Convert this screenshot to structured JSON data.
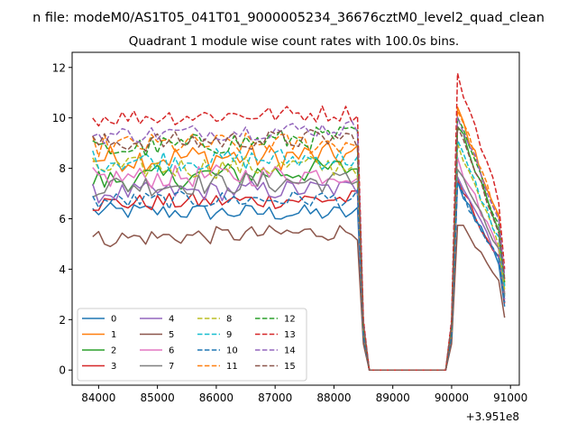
{
  "chart_data": {
    "type": "line",
    "suptitle": "n file: modeM0/AS1T05_041T01_9000005234_36676cztM0_level2_quad_clean",
    "title": "Quadrant 1 module wise count rates with 100.0s bins.",
    "xlabel": "",
    "ylabel": "",
    "x_offset_label": "+3.951e8",
    "xlim": [
      83550,
      91150
    ],
    "ylim": [
      -0.6,
      12.6
    ],
    "x_ticks": [
      84000,
      85000,
      86000,
      87000,
      88000,
      89000,
      90000,
      91000
    ],
    "x_tick_labels": [
      "84000",
      "85000",
      "86000",
      "87000",
      "88000",
      "89000",
      "90000",
      "91000"
    ],
    "y_ticks": [
      0,
      2,
      4,
      6,
      8,
      10,
      12
    ],
    "y_tick_labels": [
      "0",
      "2",
      "4",
      "6",
      "8",
      "10",
      "12"
    ],
    "grid": false,
    "legend_position": "lower-left",
    "segments": [
      {
        "start": 83900,
        "end": 88400,
        "step": 100,
        "count": 46
      },
      {
        "start": 88500,
        "end": 90000,
        "step": 100,
        "count": 16
      },
      {
        "start": 90100,
        "end": 90900,
        "step": 100,
        "count": 9
      }
    ],
    "series": [
      {
        "name": "0",
        "color": "#1f77b4",
        "dash": "solid",
        "level": 6.3,
        "amp": 0.35,
        "trend": -0.1,
        "peak": 7.4
      },
      {
        "name": "1",
        "color": "#ff7f0e",
        "dash": "solid",
        "level": 8.4,
        "amp": 0.55,
        "trend": 0.1,
        "peak": 10.4
      },
      {
        "name": "2",
        "color": "#2ca02c",
        "dash": "solid",
        "level": 7.5,
        "amp": 0.5,
        "trend": 0.5,
        "peak": 9.8
      },
      {
        "name": "3",
        "color": "#d62728",
        "dash": "solid",
        "level": 6.6,
        "amp": 0.35,
        "trend": 0.2,
        "peak": 7.5
      },
      {
        "name": "4",
        "color": "#9467bd",
        "dash": "solid",
        "level": 7.0,
        "amp": 0.4,
        "trend": 0.2,
        "peak": 7.8
      },
      {
        "name": "5",
        "color": "#8c564b",
        "dash": "solid",
        "level": 5.2,
        "amp": 0.35,
        "trend": 0.3,
        "peak": 5.9
      },
      {
        "name": "6",
        "color": "#e377c2",
        "dash": "solid",
        "level": 7.6,
        "amp": 0.45,
        "trend": 0.2,
        "peak": 8.3
      },
      {
        "name": "7",
        "color": "#7f7f7f",
        "dash": "solid",
        "level": 7.3,
        "amp": 0.45,
        "trend": 0.2,
        "peak": 8.1
      },
      {
        "name": "8",
        "color": "#bcbd22",
        "dash": "dashed",
        "level": 8.0,
        "amp": 0.45,
        "trend": 0.1,
        "peak": 8.8
      },
      {
        "name": "9",
        "color": "#17becf",
        "dash": "dashed",
        "level": 8.3,
        "amp": 0.45,
        "trend": 0.1,
        "peak": 9.0
      },
      {
        "name": "10",
        "color": "#1f77b4",
        "dash": "dashed",
        "level": 6.7,
        "amp": 0.35,
        "trend": 0.1,
        "peak": 7.3
      },
      {
        "name": "11",
        "color": "#ff7f0e",
        "dash": "dashed",
        "level": 8.9,
        "amp": 0.45,
        "trend": 0.1,
        "peak": 10.4
      },
      {
        "name": "12",
        "color": "#2ca02c",
        "dash": "dashed",
        "level": 8.7,
        "amp": 0.45,
        "trend": 0.6,
        "peak": 10.0
      },
      {
        "name": "13",
        "color": "#d62728",
        "dash": "dashed",
        "level": 10.0,
        "amp": 0.35,
        "trend": 0.2,
        "peak": 11.7
      },
      {
        "name": "14",
        "color": "#9467bd",
        "dash": "dashed",
        "level": 9.3,
        "amp": 0.35,
        "trend": 0.3,
        "peak": 10.2
      },
      {
        "name": "15",
        "color": "#8c564b",
        "dash": "dashed",
        "level": 9.0,
        "amp": 0.4,
        "trend": 0.2,
        "peak": 9.6
      }
    ]
  }
}
